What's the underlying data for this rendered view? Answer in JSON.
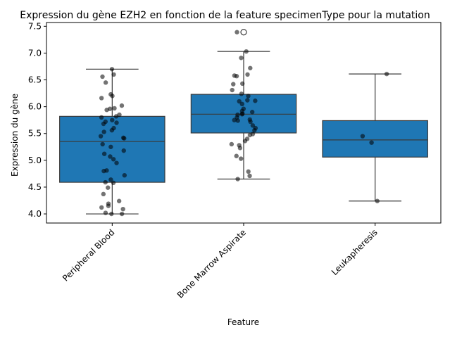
{
  "chart_data": {
    "type": "box",
    "title": "Expression du gène EZH2 en fonction de la feature specimenType pour la mutation",
    "xlabel": "Feature",
    "ylabel": "Expression du gène",
    "ylim": [
      3.83,
      7.57
    ],
    "yticks": [
      "4.0",
      "4.5",
      "5.0",
      "5.5",
      "6.0",
      "6.5",
      "7.0",
      "7.5"
    ],
    "categories": [
      "Peripheral Blood",
      "Bone Marrow Aspirate",
      "Leukapheresis"
    ],
    "box_color": "#1f77b4",
    "point_color": "#000000",
    "boxes": [
      {
        "category": "Peripheral Blood",
        "whislo": 4.0,
        "q1": 4.59,
        "med": 5.35,
        "q3": 5.82,
        "whishi": 6.7,
        "fliers": []
      },
      {
        "category": "Bone Marrow Aspirate",
        "whislo": 4.65,
        "q1": 5.51,
        "med": 5.86,
        "q3": 6.23,
        "whishi": 7.03,
        "fliers": [
          7.39
        ]
      },
      {
        "category": "Leukapheresis",
        "whislo": 4.24,
        "q1": 5.06,
        "med": 5.38,
        "q3": 5.74,
        "whishi": 6.61,
        "fliers": []
      }
    ],
    "points": [
      [
        6.7,
        6.6,
        6.56,
        6.45,
        6.23,
        6.2,
        6.16,
        6.02,
        5.97,
        5.96,
        5.94,
        5.85,
        5.82,
        5.8,
        5.75,
        5.72,
        5.7,
        5.68,
        5.6,
        5.56,
        5.53,
        5.45,
        5.42,
        5.41,
        5.3,
        5.25,
        5.18,
        5.12,
        5.07,
        5.02,
        4.95,
        4.81,
        4.8,
        4.72,
        4.64,
        4.59,
        4.58,
        4.49,
        4.37,
        4.24,
        4.19,
        4.15,
        4.12,
        4.09,
        4.02,
        4.0,
        4.0
      ],
      [
        7.39,
        7.03,
        6.91,
        6.72,
        6.6,
        6.58,
        6.57,
        6.43,
        6.42,
        6.31,
        6.24,
        6.2,
        6.12,
        6.11,
        6.1,
        6.05,
        5.96,
        5.92,
        5.9,
        5.87,
        5.86,
        5.85,
        5.8,
        5.76,
        5.75,
        5.74,
        5.72,
        5.65,
        5.6,
        5.56,
        5.49,
        5.47,
        5.4,
        5.36,
        5.3,
        5.28,
        5.23,
        5.08,
        5.03,
        4.79,
        4.71,
        4.65
      ],
      [
        6.61,
        5.45,
        5.33,
        4.24
      ]
    ]
  }
}
